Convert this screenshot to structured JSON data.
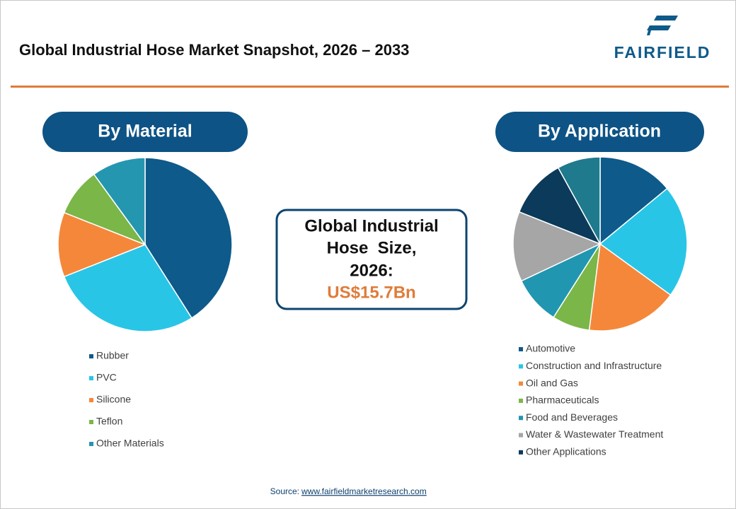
{
  "header": {
    "title": "Global Industrial Hose Market Snapshot, 2026 – 2033",
    "logo": "FAIRFIELD"
  },
  "chart_data": [
    {
      "type": "pie",
      "title": "By Material",
      "categories": [
        "Rubber",
        "PVC",
        "Silicone",
        "Teflon",
        "Other Materials"
      ],
      "values": [
        41,
        28,
        12,
        9,
        10
      ],
      "colors": [
        "#0e5a8a",
        "#29c5e6",
        "#f5873a",
        "#7ab648",
        "#2596b0"
      ]
    },
    {
      "type": "pie",
      "title": "By Application",
      "categories": [
        "Automotive",
        "Construction and Infrastructure",
        "Oil and Gas",
        "Pharmaceuticals",
        "Food and Beverages",
        "Water & Wastewater Treatment",
        "Other Applications",
        null
      ],
      "values": [
        14,
        21,
        17,
        7,
        9,
        13,
        11,
        8
      ],
      "colors": [
        "#0e5a8a",
        "#29c5e6",
        "#f5873a",
        "#7ab648",
        "#2196b0",
        "#a6a6a6",
        "#0b3a5a",
        "#1e7a8c"
      ]
    }
  ],
  "callout": {
    "lines": [
      "Global Industrial",
      "Hose  Size,",
      "2026:"
    ],
    "value": "US$15.7Bn"
  },
  "source": {
    "label": "Source:",
    "link": "www.fairfieldmarketresearch.com"
  }
}
